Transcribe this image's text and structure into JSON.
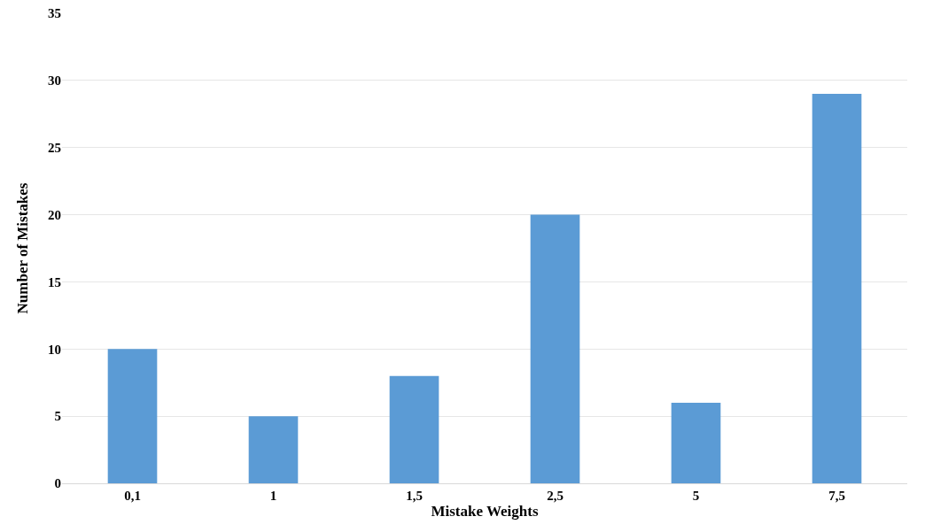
{
  "chart_data": {
    "type": "bar",
    "xlabel": "Mistake Weights",
    "ylabel": "Number of Mistakes",
    "categories": [
      "0,1",
      "1",
      "1,5",
      "2,5",
      "5",
      "7,5"
    ],
    "values": [
      10,
      5,
      8,
      20,
      6,
      29
    ],
    "color": "#5b9bd5",
    "ylim": [
      0,
      35
    ],
    "yticks": [
      0,
      5,
      10,
      15,
      20,
      25,
      30,
      35
    ],
    "grid": "y",
    "legend": false
  }
}
